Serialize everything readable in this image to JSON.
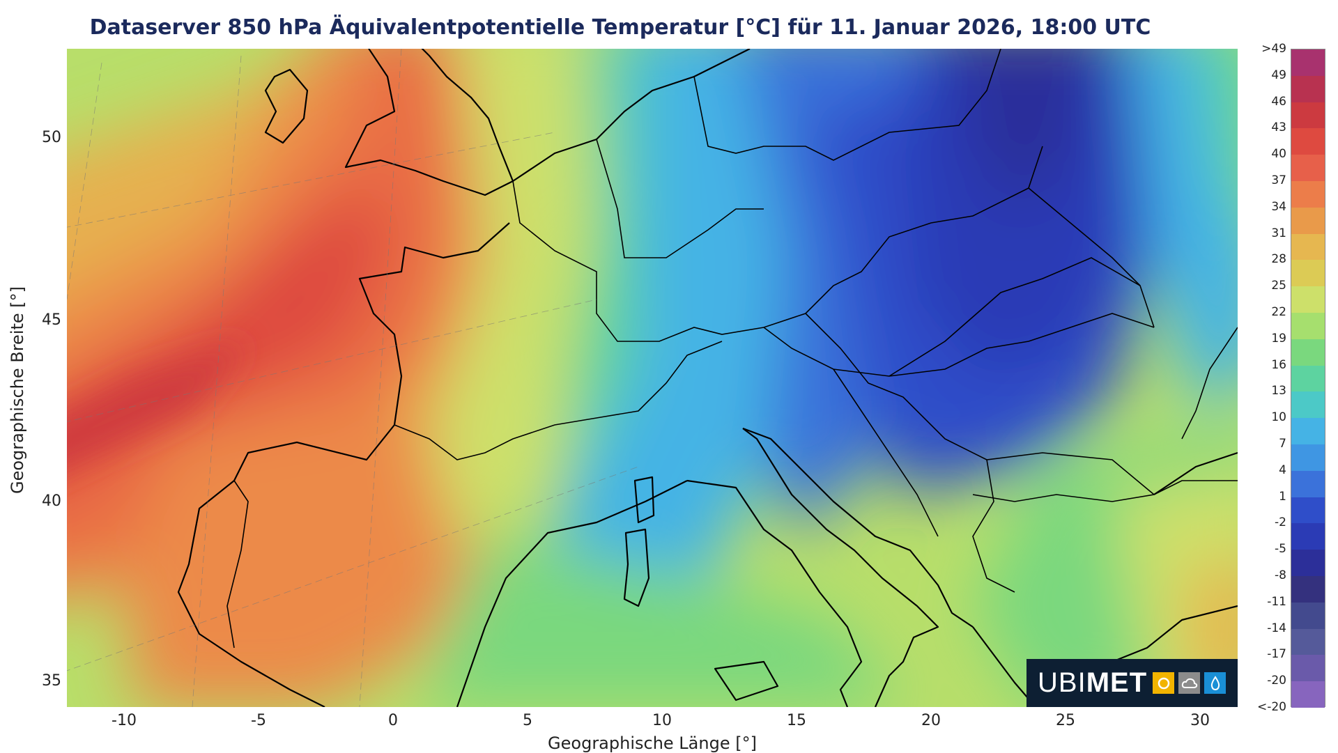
{
  "title": "Dataserver 850 hPa Äquivalentpotentielle Temperatur [°C] für 11. Januar 2026, 18:00 UTC",
  "axes": {
    "xlabel": "Geographische Länge [°]",
    "ylabel": "Geographische Breite [°]",
    "x_ticks": [
      "-10",
      "-5",
      "0",
      "5",
      "10",
      "15",
      "20",
      "25",
      "30"
    ],
    "y_ticks": [
      "50",
      "45",
      "40",
      "35"
    ]
  },
  "map": {
    "region": "Europe",
    "lon_range": [
      -12.2,
      31.3
    ],
    "lat_range": [
      34.3,
      52.5
    ],
    "field": "850 hPa equivalent potential temperature",
    "pattern": "warm (28 to 40 °C) over the Atlantic, Iberia, France and the British Isles; cold (-5 to 4 °C) over Central and Eastern Europe and the Balkans; moderate (10 to 25 °C) over Italy, the Mediterranean and Turkey"
  },
  "colorbar": {
    "labels": [
      ">49",
      "49",
      "46",
      "43",
      "40",
      "37",
      "34",
      "31",
      "28",
      "25",
      "22",
      "19",
      "16",
      "13",
      "10",
      "7",
      "4",
      "1",
      "-2",
      "-5",
      "-8",
      "-11",
      "-14",
      "-17",
      "-20",
      "<-20"
    ],
    "colors": [
      "#a8326e",
      "#b83250",
      "#cc3a40",
      "#de4a40",
      "#e7604a",
      "#ec7d4a",
      "#e99a4a",
      "#e6b750",
      "#dccb55",
      "#cde06a",
      "#a6df6e",
      "#7ad87e",
      "#5dd3a0",
      "#4cc9c7",
      "#45b3e5",
      "#3f96e3",
      "#3b72da",
      "#2f4ec9",
      "#2b3bb5",
      "#2c2f99",
      "#34317e",
      "#434a8e",
      "#555a9a",
      "#6a5aaa",
      "#8765be",
      "#a77ad0"
    ]
  },
  "logo": {
    "text_light": "UBI",
    "text_bold": "MET",
    "icons": [
      "sun-icon",
      "cloud-icon",
      "drop-icon"
    ]
  }
}
